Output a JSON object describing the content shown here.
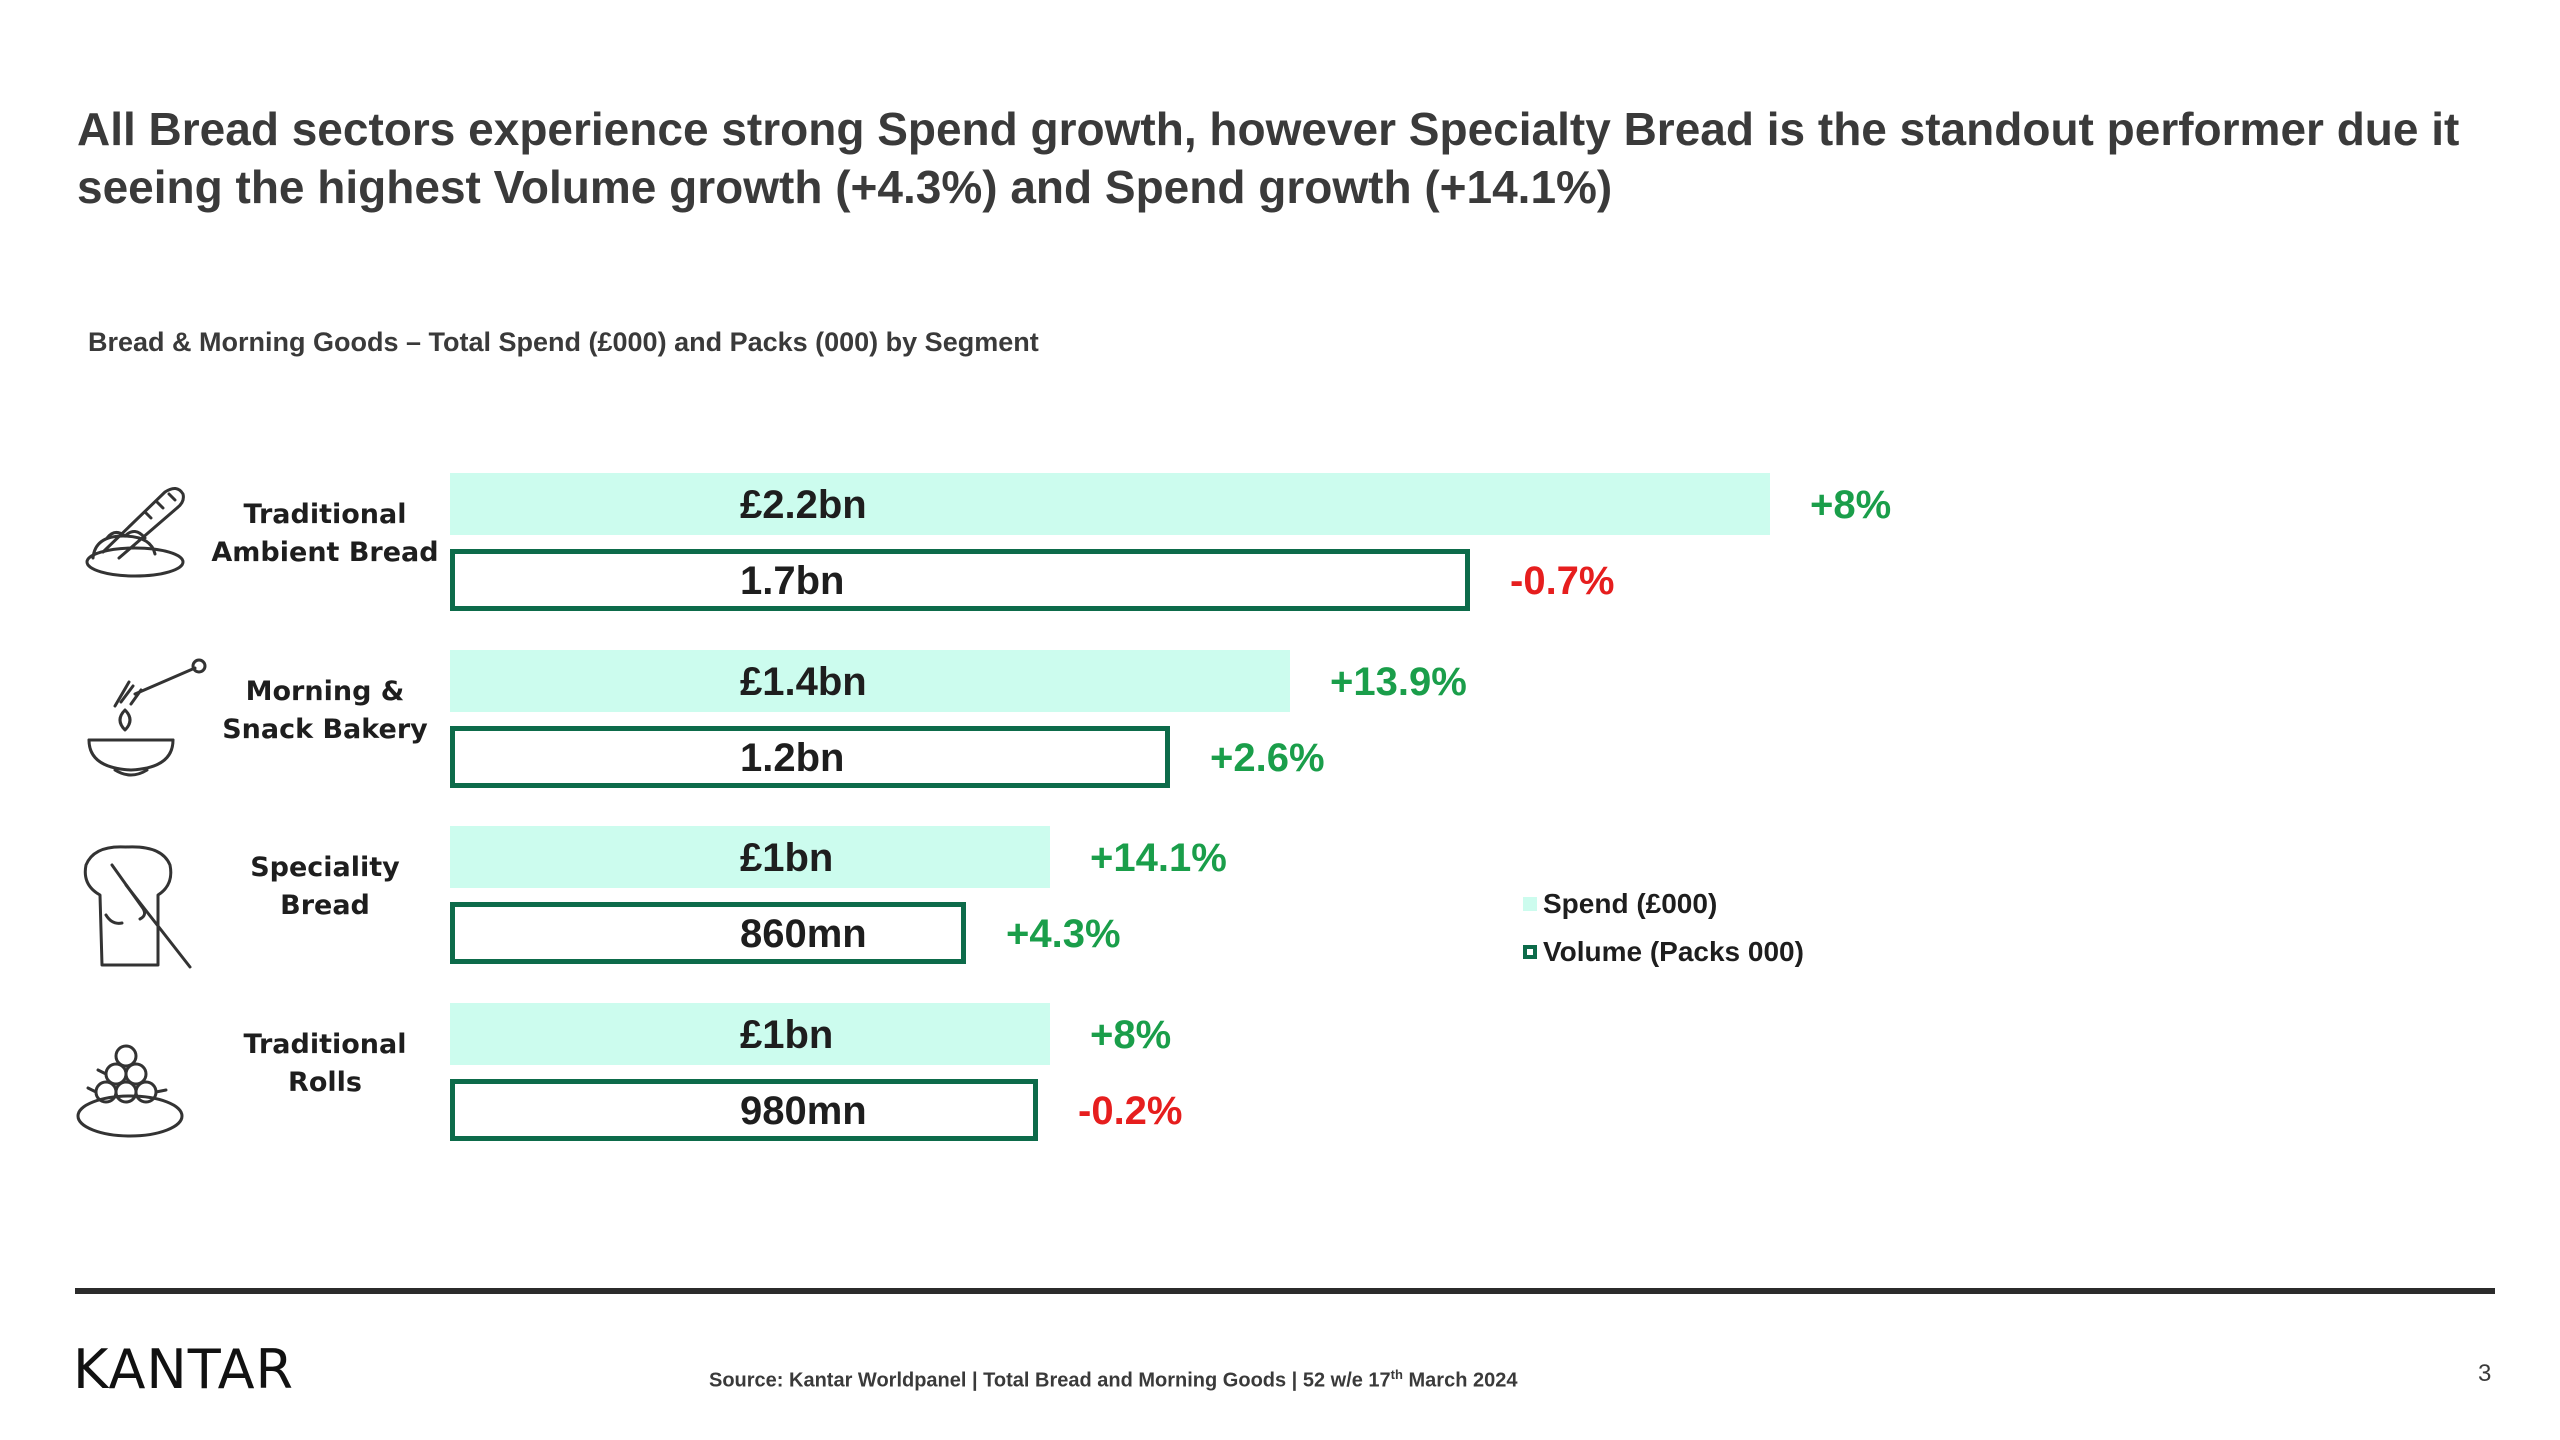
{
  "slide": {
    "headline": "All Bread sectors experience strong Spend growth, however Specialty Bread is the standout performer due it seeing the highest Volume growth (+4.3%) and Spend growth (+14.1%)",
    "logo_text": "KANTAR",
    "source_prefix": "Source: Kantar Worldpanel | Total Bread and Morning Goods | 52 w/e 17",
    "source_sup": "th",
    "source_suffix": " March 2024",
    "page_number": "3"
  },
  "chart_data": {
    "type": "bar",
    "orientation": "horizontal",
    "title": "Bread & Morning Goods – Total Spend (£000) and Packs (000) by Segment",
    "categories": [
      {
        "label_lines": [
          "Traditional",
          "Ambient Bread"
        ],
        "icon": "bread-loaf-icon"
      },
      {
        "label_lines": [
          "Morning &",
          "Snack Bakery"
        ],
        "icon": "honey-dipper-bowl-icon"
      },
      {
        "label_lines": [
          "Speciality",
          "Bread"
        ],
        "icon": "bread-slice-knife-icon"
      },
      {
        "label_lines": [
          "Traditional",
          "Rolls"
        ],
        "icon": "rolls-plate-icon"
      }
    ],
    "series": [
      {
        "name": "Spend (£000)",
        "color": "#ccfcee",
        "style": "filled",
        "values": [
          2200000,
          1400000,
          1000000,
          1000000
        ],
        "value_labels": [
          "£2.2bn",
          "£1.4bn",
          "£1bn",
          "£1bn"
        ],
        "growth_labels": [
          "+8%",
          "+13.9%",
          "+14.1%",
          "+8%"
        ]
      },
      {
        "name": "Volume (Packs 000)",
        "color": "#0d6b4a",
        "style": "outline",
        "values": [
          1700000,
          1200000,
          860000,
          980000
        ],
        "value_labels": [
          "1.7bn",
          "1.2bn",
          "860mn",
          "980mn"
        ],
        "growth_labels": [
          "-0.7%",
          "+2.6%",
          "+4.3%",
          "-0.2%"
        ]
      }
    ],
    "positive_color": "#1a9e4a",
    "negative_color": "#e61e1e",
    "legend_position": "right",
    "grid": false
  }
}
